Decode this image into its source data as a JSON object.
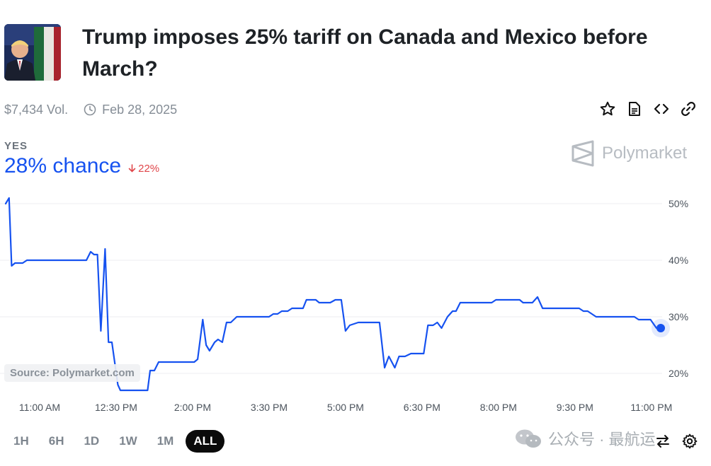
{
  "market": {
    "title": "Trump imposes 25% tariff on Canada and Mexico before March?",
    "volume": "$7,434 Vol.",
    "end_date": "Feb 28, 2025",
    "outcome_label": "YES",
    "chance_text": "28% chance",
    "change_text": "22%",
    "brand": "Polymarket",
    "source": "Source: Polymarket.com"
  },
  "actions": [
    "star-icon",
    "document-icon",
    "code-icon",
    "link-icon"
  ],
  "ranges": [
    {
      "label": "1H",
      "active": false
    },
    {
      "label": "6H",
      "active": false
    },
    {
      "label": "1D",
      "active": false
    },
    {
      "label": "1W",
      "active": false
    },
    {
      "label": "1M",
      "active": false
    },
    {
      "label": "ALL",
      "active": true
    }
  ],
  "watermark": "公众号 · 最航运",
  "colors": {
    "line": "#1652f0",
    "change_down": "#e0464a",
    "grid": "#eceef0"
  },
  "chart_data": {
    "type": "line",
    "xlabel": "",
    "ylabel": "",
    "ylim": [
      16,
      51
    ],
    "x_range_minutes": [
      620,
      1391
    ],
    "yticks": [
      20,
      30,
      40,
      50
    ],
    "ytick_labels": [
      "20%",
      "30%",
      "40%",
      "50%"
    ],
    "xticks": [
      {
        "t": 660,
        "label": "11:00 AM"
      },
      {
        "t": 750,
        "label": "12:30 PM"
      },
      {
        "t": 840,
        "label": "2:00 PM"
      },
      {
        "t": 930,
        "label": "3:30 PM"
      },
      {
        "t": 1020,
        "label": "5:00 PM"
      },
      {
        "t": 1110,
        "label": "6:30 PM"
      },
      {
        "t": 1200,
        "label": "8:00 PM"
      },
      {
        "t": 1290,
        "label": "9:30 PM"
      },
      {
        "t": 1380,
        "label": "11:00 PM"
      }
    ],
    "series": [
      {
        "name": "",
        "points": [
          [
            620,
            50
          ],
          [
            624,
            51
          ],
          [
            627,
            39
          ],
          [
            631,
            39.5
          ],
          [
            640,
            39.5
          ],
          [
            645,
            40
          ],
          [
            670,
            40
          ],
          [
            715,
            40
          ],
          [
            720,
            41.5
          ],
          [
            724,
            41
          ],
          [
            728,
            41
          ],
          [
            732,
            27.5
          ],
          [
            737,
            42
          ],
          [
            741,
            25.5
          ],
          [
            745,
            25.5
          ],
          [
            752,
            18
          ],
          [
            755,
            17
          ],
          [
            770,
            17
          ],
          [
            787,
            17
          ],
          [
            790,
            20.5
          ],
          [
            795,
            20.5
          ],
          [
            800,
            22
          ],
          [
            830,
            22
          ],
          [
            842,
            22
          ],
          [
            846,
            22.5
          ],
          [
            852,
            29.5
          ],
          [
            856,
            25
          ],
          [
            860,
            24
          ],
          [
            866,
            25.5
          ],
          [
            870,
            26
          ],
          [
            875,
            25.5
          ],
          [
            880,
            29
          ],
          [
            885,
            29
          ],
          [
            892,
            30
          ],
          [
            930,
            30
          ],
          [
            935,
            30.5
          ],
          [
            940,
            30.5
          ],
          [
            945,
            31
          ],
          [
            952,
            31
          ],
          [
            957,
            31.5
          ],
          [
            970,
            31.5
          ],
          [
            974,
            33
          ],
          [
            985,
            33
          ],
          [
            989,
            32.5
          ],
          [
            1002,
            32.5
          ],
          [
            1008,
            33
          ],
          [
            1015,
            33
          ],
          [
            1020,
            27.5
          ],
          [
            1025,
            28.5
          ],
          [
            1035,
            29
          ],
          [
            1060,
            29
          ],
          [
            1066,
            21
          ],
          [
            1071,
            23
          ],
          [
            1078,
            21
          ],
          [
            1083,
            23
          ],
          [
            1090,
            23
          ],
          [
            1097,
            23.5
          ],
          [
            1112,
            23.5
          ],
          [
            1117,
            28.5
          ],
          [
            1123,
            28.5
          ],
          [
            1128,
            29
          ],
          [
            1133,
            28
          ],
          [
            1140,
            30
          ],
          [
            1146,
            31
          ],
          [
            1150,
            31
          ],
          [
            1155,
            32.5
          ],
          [
            1170,
            32.5
          ],
          [
            1192,
            32.5
          ],
          [
            1197,
            33
          ],
          [
            1215,
            33
          ],
          [
            1225,
            33
          ],
          [
            1229,
            32.5
          ],
          [
            1240,
            32.5
          ],
          [
            1246,
            33.5
          ],
          [
            1252,
            31.5
          ],
          [
            1268,
            31.5
          ],
          [
            1295,
            31.5
          ],
          [
            1300,
            31
          ],
          [
            1305,
            31
          ],
          [
            1315,
            30
          ],
          [
            1330,
            30
          ],
          [
            1360,
            30
          ],
          [
            1365,
            29.5
          ],
          [
            1379,
            29.5
          ],
          [
            1386,
            28
          ],
          [
            1391,
            28
          ]
        ]
      }
    ]
  }
}
